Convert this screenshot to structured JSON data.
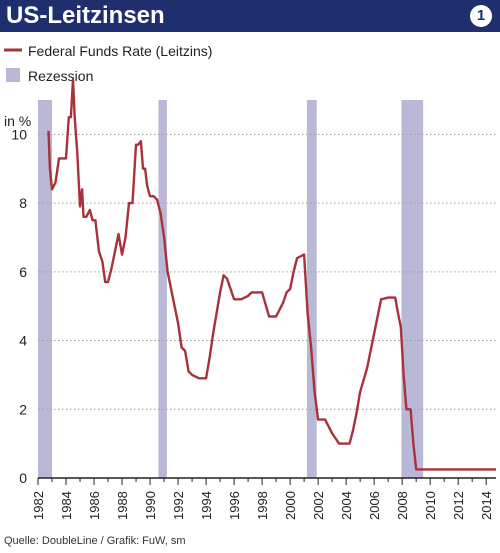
{
  "header": {
    "title": "US-Leitzinsen",
    "badge": "1"
  },
  "legend": {
    "series_label": "Federal Funds Rate (Leitzins)",
    "recession_label": "Rezession"
  },
  "source": "Quelle: DoubleLine / Grafik: FuW, sm",
  "colors": {
    "header": "#1f2f6e",
    "series": "#a9323a",
    "recession": "#b9b8d6",
    "grid": "#9a9a9a"
  },
  "chart_data": {
    "type": "line",
    "title": "US-Leitzinsen",
    "ylabel": "in %",
    "xlabel": "",
    "xlim": [
      1982,
      2014.7
    ],
    "ylim": [
      0,
      11
    ],
    "x_ticks": [
      1982,
      1984,
      1986,
      1988,
      1990,
      1992,
      1994,
      1996,
      1998,
      2000,
      2002,
      2004,
      2006,
      2008,
      2010,
      2012,
      2014
    ],
    "y_ticks": [
      0,
      2,
      4,
      6,
      8,
      10
    ],
    "grid": "horizontal",
    "series": [
      {
        "name": "Federal Funds Rate (Leitzins)",
        "x": [
          1982.75,
          1982.85,
          1983.0,
          1983.25,
          1983.5,
          1983.75,
          1984.0,
          1984.2,
          1984.35,
          1984.5,
          1984.62,
          1984.8,
          1984.9,
          1985.0,
          1985.15,
          1985.25,
          1985.45,
          1985.7,
          1985.9,
          1986.1,
          1986.35,
          1986.6,
          1986.8,
          1987.0,
          1987.25,
          1987.5,
          1987.75,
          1988.0,
          1988.25,
          1988.5,
          1988.75,
          1989.0,
          1989.15,
          1989.35,
          1989.5,
          1989.65,
          1989.8,
          1990.0,
          1990.25,
          1990.5,
          1990.75,
          1991.0,
          1991.25,
          1991.5,
          1991.75,
          1992.0,
          1992.25,
          1992.5,
          1992.75,
          1993.0,
          1993.5,
          1994.0,
          1994.25,
          1994.5,
          1994.75,
          1995.0,
          1995.25,
          1995.5,
          1995.75,
          1996.0,
          1996.5,
          1997.0,
          1997.25,
          1997.5,
          1998.0,
          1998.5,
          1998.75,
          1999.0,
          1999.5,
          1999.75,
          2000.0,
          2000.25,
          2000.5,
          2001.0,
          2001.25,
          2001.5,
          2001.75,
          2002.0,
          2002.5,
          2003.0,
          2003.5,
          2003.6,
          2004.25,
          2004.5,
          2004.75,
          2005.0,
          2005.5,
          2006.0,
          2006.5,
          2007.0,
          2007.5,
          2007.7,
          2007.9,
          2008.1,
          2008.3,
          2008.6,
          2008.8,
          2009.0,
          2010.0,
          2011.0,
          2012.0,
          2013.0,
          2014.0,
          2014.7
        ],
        "y": [
          10.1,
          9.0,
          8.4,
          8.6,
          9.3,
          9.3,
          9.3,
          10.5,
          10.5,
          11.6,
          10.5,
          9.5,
          8.7,
          7.9,
          8.4,
          7.6,
          7.6,
          7.8,
          7.5,
          7.5,
          6.6,
          6.3,
          5.7,
          5.7,
          6.1,
          6.6,
          7.1,
          6.5,
          7.0,
          8.0,
          8.0,
          9.7,
          9.7,
          9.8,
          9.0,
          9.0,
          8.5,
          8.2,
          8.2,
          8.1,
          7.7,
          7.0,
          6.0,
          5.5,
          5.0,
          4.5,
          3.8,
          3.7,
          3.1,
          3.0,
          2.9,
          2.9,
          3.5,
          4.2,
          4.8,
          5.4,
          5.9,
          5.8,
          5.5,
          5.2,
          5.2,
          5.3,
          5.4,
          5.4,
          5.4,
          4.7,
          4.7,
          4.7,
          5.1,
          5.4,
          5.5,
          6.0,
          6.4,
          6.5,
          4.8,
          3.8,
          2.5,
          1.7,
          1.7,
          1.3,
          1.0,
          1.0,
          1.0,
          1.4,
          1.9,
          2.5,
          3.2,
          4.2,
          5.2,
          5.25,
          5.25,
          4.8,
          4.4,
          3.0,
          2.0,
          2.0,
          1.0,
          0.25,
          0.25,
          0.25,
          0.25,
          0.25,
          0.25,
          0.25
        ]
      }
    ],
    "recessions": [
      [
        1982.0,
        1983.0
      ],
      [
        1990.6,
        1991.2
      ],
      [
        2001.2,
        2001.9
      ],
      [
        2007.95,
        2009.5
      ]
    ]
  }
}
